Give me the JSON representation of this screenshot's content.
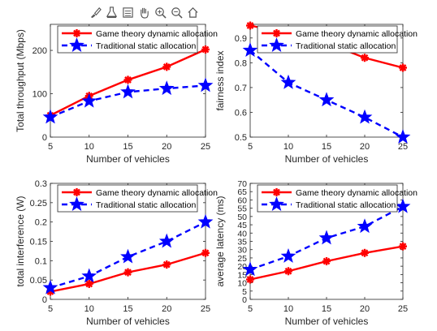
{
  "toolbar": {
    "icons": [
      "brush-icon",
      "data-tips-icon",
      "legend-icon",
      "pan-icon",
      "zoom-in-icon",
      "zoom-out-icon",
      "home-icon"
    ]
  },
  "colors": {
    "series1": "#ff0000",
    "series2": "#0000ff",
    "axis": "#262626"
  },
  "chart_data": [
    {
      "type": "line",
      "xlabel": "Number of vehicles",
      "ylabel": "Total throughput (Mbps)",
      "x": [
        5,
        10,
        15,
        20,
        25
      ],
      "xticks": [
        "5",
        "10",
        "15",
        "20",
        "25"
      ],
      "yticks": [
        "0",
        "100",
        "200"
      ],
      "ytick_values": [
        0,
        100,
        200
      ],
      "xlim": [
        5,
        25
      ],
      "ylim": [
        0,
        260
      ],
      "legend_location": "top",
      "series": [
        {
          "name": "Game theory dynamic allocation",
          "values": [
            50,
            95,
            132,
            162,
            202
          ],
          "color": "#ff0000",
          "marker": "asterisk",
          "line": "solid"
        },
        {
          "name": "Traditional static allocation",
          "values": [
            46,
            83,
            104,
            112,
            119
          ],
          "color": "#0000ff",
          "marker": "star",
          "line": "dashed"
        }
      ]
    },
    {
      "type": "line",
      "xlabel": "Number of vehicles",
      "ylabel": "fairness index",
      "x": [
        5,
        10,
        15,
        20,
        25
      ],
      "xticks": [
        "5",
        "10",
        "15",
        "20",
        "25"
      ],
      "yticks": [
        "0.5",
        "0.6",
        "0.7",
        "0.8",
        "0.9"
      ],
      "ytick_values": [
        0.5,
        0.6,
        0.7,
        0.8,
        0.9
      ],
      "xlim": [
        5,
        25
      ],
      "ylim": [
        0.5,
        0.955
      ],
      "legend_location": "top",
      "series": [
        {
          "name": "Game theory dynamic allocation",
          "values": [
            0.95,
            0.92,
            0.88,
            0.82,
            0.78
          ],
          "color": "#ff0000",
          "marker": "asterisk",
          "line": "solid"
        },
        {
          "name": "Traditional static allocation",
          "values": [
            0.85,
            0.72,
            0.65,
            0.58,
            0.5
          ],
          "color": "#0000ff",
          "marker": "star",
          "line": "dashed"
        }
      ]
    },
    {
      "type": "line",
      "xlabel": "Number of vehicles",
      "ylabel": "total interference (W)",
      "x": [
        5,
        10,
        15,
        20,
        25
      ],
      "xticks": [
        "5",
        "10",
        "15",
        "20",
        "25"
      ],
      "yticks": [
        "0",
        "0.05",
        "0.1",
        "0.15",
        "0.2",
        "0.25",
        "0.3"
      ],
      "ytick_values": [
        0,
        0.05,
        0.1,
        0.15,
        0.2,
        0.25,
        0.3
      ],
      "xlim": [
        5,
        25
      ],
      "ylim": [
        0,
        0.3
      ],
      "legend_location": "top",
      "series": [
        {
          "name": "Game theory dynamic allocation",
          "values": [
            0.02,
            0.04,
            0.07,
            0.09,
            0.12
          ],
          "color": "#ff0000",
          "marker": "asterisk",
          "line": "solid"
        },
        {
          "name": "Traditional static allocation",
          "values": [
            0.03,
            0.06,
            0.11,
            0.15,
            0.2
          ],
          "color": "#0000ff",
          "marker": "star",
          "line": "dashed"
        }
      ]
    },
    {
      "type": "line",
      "xlabel": "Number of vehicles",
      "ylabel": "average latency (ms)",
      "x": [
        5,
        10,
        15,
        20,
        25
      ],
      "xticks": [
        "5",
        "10",
        "15",
        "20",
        "25"
      ],
      "yticks": [
        "0",
        "5",
        "10",
        "15",
        "20",
        "25",
        "30",
        "35",
        "40",
        "45",
        "50",
        "55",
        "60",
        "65",
        "70"
      ],
      "ytick_values": [
        0,
        5,
        10,
        15,
        20,
        25,
        30,
        35,
        40,
        45,
        50,
        55,
        60,
        65,
        70
      ],
      "xlim": [
        5,
        25
      ],
      "ylim": [
        0,
        70
      ],
      "legend_location": "top",
      "series": [
        {
          "name": "Game theory dynamic allocation",
          "values": [
            12,
            17,
            23,
            28,
            32
          ],
          "color": "#ff0000",
          "marker": "asterisk",
          "line": "solid"
        },
        {
          "name": "Traditional static allocation",
          "values": [
            18,
            26,
            37,
            44,
            56
          ],
          "color": "#0000ff",
          "marker": "star",
          "line": "dashed"
        }
      ]
    }
  ]
}
